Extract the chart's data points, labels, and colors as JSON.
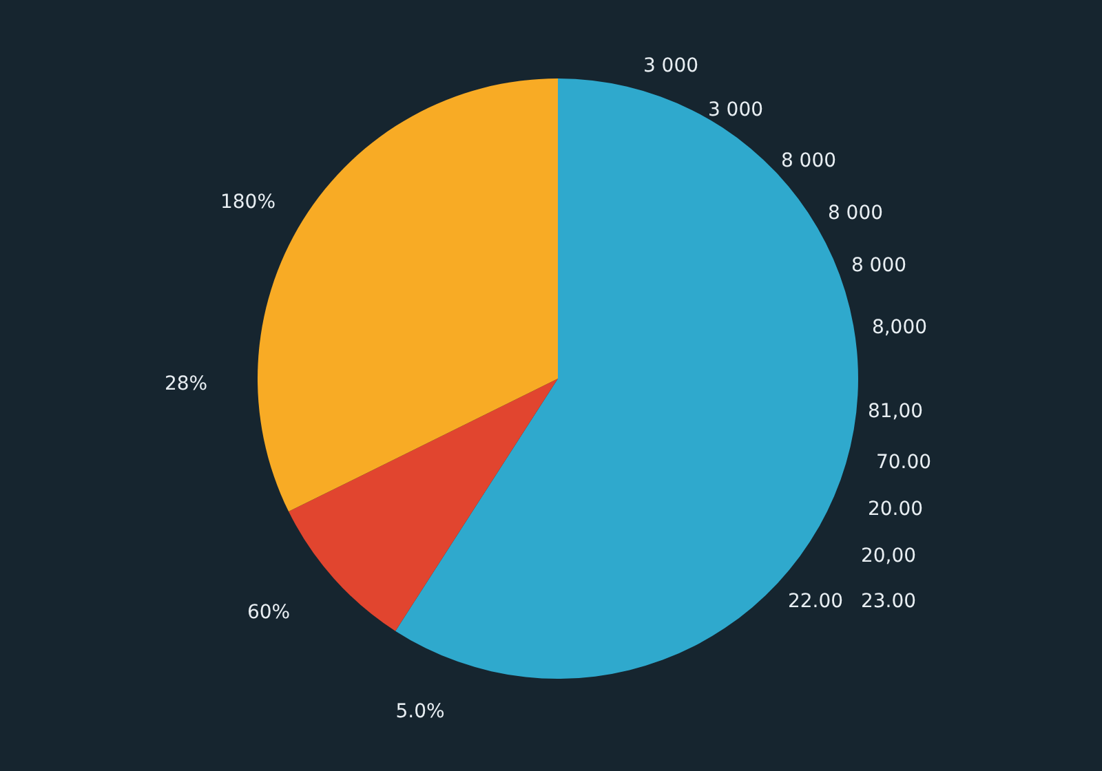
{
  "chart_data": {
    "type": "pie",
    "categories": [
      null,
      null,
      null
    ],
    "values": [
      59.1,
      8.6,
      32.3
    ],
    "colors": [
      "#2fa9cd",
      "#e1452f",
      "#f8ab25"
    ],
    "annotations": [
      "3 000",
      "3 000",
      "8 000",
      "8 000",
      "8 000",
      "8,000",
      "81,00",
      "70.00",
      "20.00",
      "20,00",
      "22.00",
      "23.00",
      "180%",
      "28%",
      "60%",
      "5.0%"
    ]
  }
}
